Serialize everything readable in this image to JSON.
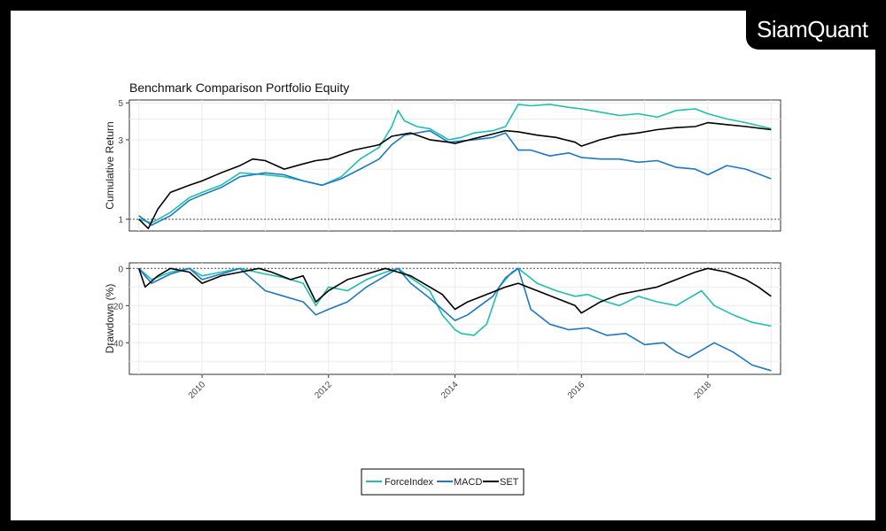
{
  "brand": {
    "text": "SiamQuant"
  },
  "chart_data": [
    {
      "type": "line",
      "title": "Benchmark Comparison Portfolio Equity",
      "ylabel": "Cumulative Return",
      "xlabel": "",
      "y_scale": "log",
      "ylim": [
        0.85,
        5.2
      ],
      "yticks": [
        1,
        3,
        5
      ],
      "xlim": [
        2008.85,
        2019.15
      ],
      "xticks": [
        2010,
        2012,
        2014,
        2016,
        2018
      ],
      "reference_line": {
        "y": 1,
        "style": "dotted"
      },
      "grid": true,
      "series": [
        {
          "name": "ForceIndex",
          "color": "#1fbfad",
          "x": [
            2009.0,
            2009.2,
            2009.5,
            2009.8,
            2010.0,
            2010.3,
            2010.6,
            2011.0,
            2011.3,
            2011.6,
            2011.9,
            2012.2,
            2012.5,
            2012.8,
            2013.0,
            2013.1,
            2013.2,
            2013.4,
            2013.6,
            2013.9,
            2014.1,
            2014.3,
            2014.6,
            2014.8,
            2015.0,
            2015.2,
            2015.5,
            2015.8,
            2016.0,
            2016.3,
            2016.6,
            2016.9,
            2017.2,
            2017.5,
            2017.8,
            2018.0,
            2018.3,
            2018.6,
            2019.0
          ],
          "y": [
            1.0,
            0.95,
            1.1,
            1.35,
            1.45,
            1.6,
            1.9,
            1.85,
            1.8,
            1.7,
            1.6,
            1.8,
            2.3,
            2.7,
            3.6,
            4.5,
            3.9,
            3.6,
            3.5,
            3.0,
            3.1,
            3.3,
            3.4,
            3.6,
            4.9,
            4.8,
            4.9,
            4.7,
            4.6,
            4.4,
            4.2,
            4.3,
            4.1,
            4.5,
            4.6,
            4.3,
            4.0,
            3.8,
            3.5
          ]
        },
        {
          "name": "MACD",
          "color": "#1f78c1",
          "x": [
            2009.0,
            2009.2,
            2009.5,
            2009.8,
            2010.0,
            2010.3,
            2010.6,
            2011.0,
            2011.3,
            2011.6,
            2011.9,
            2012.2,
            2012.5,
            2012.8,
            2013.0,
            2013.2,
            2013.4,
            2013.6,
            2013.9,
            2014.1,
            2014.3,
            2014.6,
            2014.8,
            2015.0,
            2015.2,
            2015.5,
            2015.8,
            2016.0,
            2016.3,
            2016.6,
            2016.9,
            2017.2,
            2017.5,
            2017.8,
            2018.0,
            2018.3,
            2018.6,
            2019.0
          ],
          "y": [
            1.05,
            0.92,
            1.05,
            1.3,
            1.4,
            1.55,
            1.8,
            1.9,
            1.85,
            1.7,
            1.6,
            1.75,
            2.0,
            2.3,
            2.8,
            3.2,
            3.3,
            3.4,
            2.9,
            2.95,
            3.0,
            3.1,
            3.3,
            2.6,
            2.6,
            2.4,
            2.5,
            2.35,
            2.3,
            2.3,
            2.2,
            2.25,
            2.05,
            2.0,
            1.85,
            2.1,
            2.0,
            1.75
          ]
        },
        {
          "name": "SET",
          "color": "#000000",
          "x": [
            2009.0,
            2009.15,
            2009.3,
            2009.5,
            2009.8,
            2010.0,
            2010.3,
            2010.6,
            2010.8,
            2011.0,
            2011.3,
            2011.6,
            2011.8,
            2012.0,
            2012.4,
            2012.8,
            2013.0,
            2013.3,
            2013.6,
            2013.9,
            2014.0,
            2014.3,
            2014.6,
            2014.8,
            2015.0,
            2015.3,
            2015.6,
            2015.9,
            2016.0,
            2016.3,
            2016.6,
            2016.9,
            2017.2,
            2017.5,
            2017.8,
            2018.0,
            2018.3,
            2018.6,
            2019.0
          ],
          "y": [
            1.0,
            0.88,
            1.15,
            1.45,
            1.6,
            1.7,
            1.9,
            2.1,
            2.3,
            2.25,
            2.0,
            2.15,
            2.25,
            2.3,
            2.6,
            2.8,
            3.15,
            3.3,
            3.0,
            2.9,
            2.85,
            3.05,
            3.25,
            3.4,
            3.35,
            3.2,
            3.1,
            2.9,
            2.75,
            3.0,
            3.2,
            3.3,
            3.45,
            3.55,
            3.6,
            3.8,
            3.7,
            3.6,
            3.45
          ]
        }
      ]
    },
    {
      "type": "line",
      "title": "",
      "ylabel": "Drawdown (%)",
      "xlabel": "",
      "ylim": [
        -57,
        3
      ],
      "yticks": [
        0,
        -20,
        -40
      ],
      "xlim": [
        2008.85,
        2019.15
      ],
      "xticks": [
        2010,
        2012,
        2014,
        2016,
        2018
      ],
      "x_tick_rotation_deg": 45,
      "reference_line": {
        "y": 0,
        "style": "dotted"
      },
      "grid": true,
      "series": [
        {
          "name": "ForceIndex",
          "color": "#1fbfad",
          "x": [
            2009.0,
            2009.2,
            2009.5,
            2009.8,
            2010.0,
            2010.3,
            2010.6,
            2011.0,
            2011.3,
            2011.6,
            2011.8,
            2012.0,
            2012.3,
            2012.6,
            2012.9,
            2013.1,
            2013.3,
            2013.6,
            2013.8,
            2014.0,
            2014.1,
            2014.3,
            2014.5,
            2014.7,
            2014.9,
            2015.0,
            2015.3,
            2015.6,
            2015.9,
            2016.1,
            2016.4,
            2016.6,
            2016.9,
            2017.2,
            2017.5,
            2017.7,
            2017.9,
            2018.1,
            2018.4,
            2018.7,
            2019.0
          ],
          "y": [
            0,
            -6,
            -2,
            0,
            -4,
            -2,
            0,
            -3,
            -5,
            -8,
            -20,
            -10,
            -12,
            -6,
            -2,
            0,
            -5,
            -12,
            -25,
            -33,
            -35,
            -36,
            -30,
            -10,
            -2,
            0,
            -8,
            -12,
            -15,
            -14,
            -18,
            -20,
            -15,
            -18,
            -20,
            -16,
            -12,
            -20,
            -25,
            -29,
            -31
          ]
        },
        {
          "name": "MACD",
          "color": "#1f78c1",
          "x": [
            2009.0,
            2009.2,
            2009.5,
            2009.8,
            2010.0,
            2010.3,
            2010.6,
            2011.0,
            2011.3,
            2011.6,
            2011.8,
            2012.0,
            2012.3,
            2012.6,
            2012.9,
            2013.1,
            2013.3,
            2013.6,
            2013.8,
            2014.0,
            2014.2,
            2014.4,
            2014.6,
            2014.8,
            2015.0,
            2015.2,
            2015.5,
            2015.8,
            2016.1,
            2016.4,
            2016.7,
            2017.0,
            2017.3,
            2017.5,
            2017.7,
            2017.9,
            2018.1,
            2018.4,
            2018.7,
            2019.0
          ],
          "y": [
            0,
            -8,
            -3,
            0,
            -6,
            -3,
            0,
            -12,
            -15,
            -18,
            -25,
            -22,
            -18,
            -10,
            -4,
            0,
            -8,
            -16,
            -22,
            -28,
            -25,
            -20,
            -15,
            -5,
            0,
            -22,
            -30,
            -33,
            -32,
            -36,
            -35,
            -41,
            -40,
            -45,
            -48,
            -44,
            -40,
            -45,
            -52,
            -55
          ]
        },
        {
          "name": "SET",
          "color": "#000000",
          "x": [
            2009.0,
            2009.1,
            2009.3,
            2009.5,
            2009.8,
            2010.0,
            2010.3,
            2010.6,
            2010.9,
            2011.1,
            2011.4,
            2011.6,
            2011.8,
            2012.0,
            2012.3,
            2012.6,
            2012.9,
            2013.1,
            2013.3,
            2013.5,
            2013.8,
            2014.0,
            2014.2,
            2014.5,
            2014.8,
            2015.0,
            2015.3,
            2015.6,
            2015.9,
            2016.0,
            2016.3,
            2016.6,
            2016.9,
            2017.2,
            2017.5,
            2017.8,
            2018.0,
            2018.3,
            2018.6,
            2018.8,
            2019.0
          ],
          "y": [
            0,
            -10,
            -4,
            0,
            -2,
            -8,
            -4,
            -2,
            0,
            -2,
            -6,
            -4,
            -18,
            -12,
            -6,
            -3,
            0,
            -2,
            -4,
            -8,
            -14,
            -22,
            -18,
            -14,
            -10,
            -8,
            -12,
            -16,
            -20,
            -24,
            -18,
            -14,
            -12,
            -10,
            -6,
            -2,
            0,
            -2,
            -6,
            -10,
            -15
          ]
        }
      ]
    }
  ],
  "legend": {
    "items": [
      {
        "name": "ForceIndex",
        "color": "#1fbfad"
      },
      {
        "name": "MACD",
        "color": "#1f78c1"
      },
      {
        "name": "SET",
        "color": "#000000"
      }
    ]
  }
}
